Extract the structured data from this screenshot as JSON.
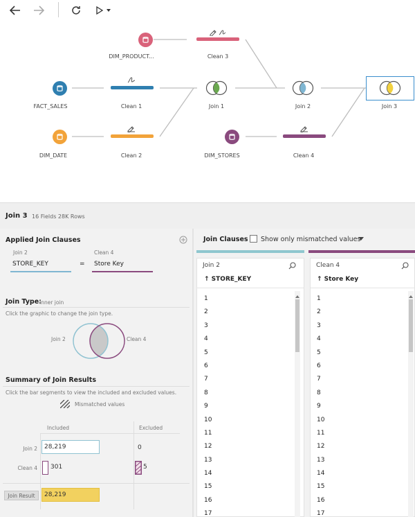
{
  "toolbar": {
    "back_icon": "arrow-left-icon",
    "forward_icon": "arrow-right-icon",
    "refresh_icon": "refresh-icon",
    "run_icon": "play-icon",
    "run_menu_icon": "caret-down-icon"
  },
  "flow": {
    "nodes": {
      "dim_product": "DIM_PRODUCT...",
      "fact_sales": "FACT_SALES",
      "dim_date": "DIM_DATE",
      "dim_stores": "DIM_STORES",
      "clean1": "Clean 1",
      "clean2": "Clean 2",
      "clean3": "Clean 3",
      "clean4": "Clean 4",
      "join1": "Join 1",
      "join2": "Join 2",
      "join3": "Join 3"
    },
    "colors": {
      "dim_product": "#d9627a",
      "fact_sales": "#2f7fb0",
      "dim_date": "#f2a33a",
      "dim_stores": "#8a4a7e",
      "clean1": "#2f7fb0",
      "clean2": "#f2a33a",
      "clean3": "#d9627a",
      "clean4": "#8a4a7e",
      "join1_fill": "#6aa84f",
      "join2_fill": "#7fb6d2",
      "join3_fill": "#f2d140",
      "selected_border": "#3a8ecd"
    }
  },
  "panel": {
    "title": "Join 3",
    "meta": "16 Fields  28K Rows"
  },
  "applied_join": {
    "title": "Applied Join Clauses",
    "left_source": "Join 2",
    "right_source": "Clean 4",
    "left_field": "STORE_KEY",
    "operator": "=",
    "right_field": "Store Key",
    "add_icon": "plus-circle-icon",
    "left_color": "#7fb6d2",
    "right_color": "#8a4a7e"
  },
  "join_type": {
    "title": "Join Type:",
    "value": "Inner join",
    "hint": "Click the graphic to change the join type.",
    "left_label": "Join 2",
    "right_label": "Clean 4"
  },
  "summary": {
    "title": "Summary of Join Results",
    "hint": "Click the bar segments to view the included and excluded values.",
    "mismatched_label": "Mismatched values",
    "included_header": "Included",
    "excluded_header": "Excluded",
    "rows": [
      {
        "label": "Join 2",
        "included": "28,219",
        "excluded": "0"
      },
      {
        "label": "Clean 4",
        "included": "301",
        "excluded": "5"
      }
    ],
    "result_label": "Join Result",
    "result_value": "28,219"
  },
  "join_clauses": {
    "title": "Join Clauses",
    "checkbox_label": "Show only mismatched values",
    "left": {
      "source": "Join 2",
      "field": "↑ STORE_KEY",
      "values": [
        "1",
        "2",
        "3",
        "4",
        "5",
        "6",
        "7",
        "8",
        "9",
        "10",
        "11",
        "12",
        "13",
        "14",
        "15",
        "16",
        "17"
      ]
    },
    "right": {
      "source": "Clean 4",
      "field": "↑ Store Key",
      "values": [
        "1",
        "2",
        "3",
        "4",
        "5",
        "6",
        "7",
        "8",
        "9",
        "10",
        "11",
        "12",
        "13",
        "14",
        "15",
        "16",
        "17"
      ]
    },
    "search_icon": "search-icon"
  }
}
